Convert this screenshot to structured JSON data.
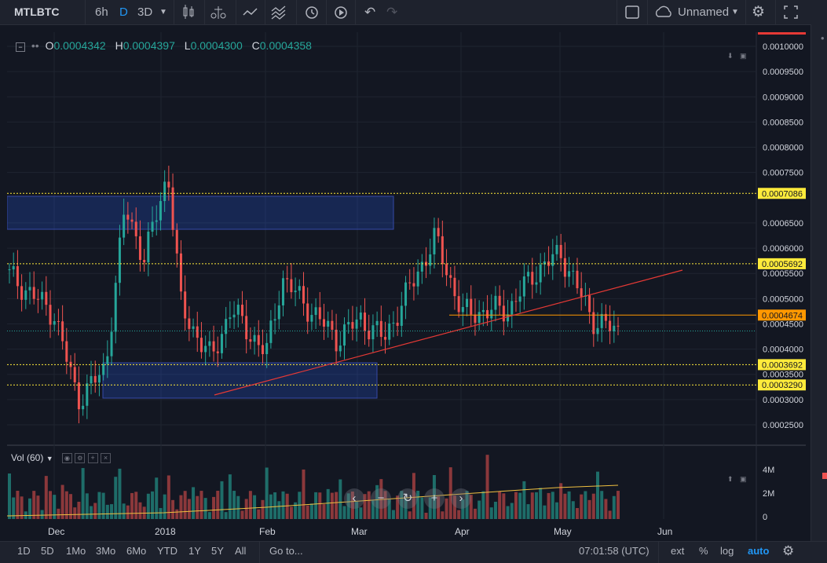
{
  "toolbar": {
    "symbol": "MTLBTC",
    "intervals": [
      "6h",
      "D",
      "3D"
    ],
    "active_interval": "D",
    "layout_name": "Unnamed"
  },
  "legend": {
    "o_label": "O",
    "o_value": "0.0004342",
    "h_label": "H",
    "h_value": "0.0004397",
    "l_label": "L",
    "l_value": "0.0004300",
    "c_label": "C",
    "c_value": "0.0004358"
  },
  "volume": {
    "label": "Vol (60)",
    "axis": [
      "4M",
      "2M",
      "0"
    ]
  },
  "price_axis": {
    "ticks": [
      "0.0010000",
      "0.0009500",
      "0.0009000",
      "0.0008500",
      "0.0008000",
      "0.0007500",
      "0.0006500",
      "0.0006000",
      "0.0005500",
      "0.0005000",
      "0.0004500",
      "0.0004000",
      "0.0003500",
      "0.0003000",
      "0.0002500"
    ],
    "tick_values": [
      0.001,
      0.00095,
      0.0009,
      0.00085,
      0.0008,
      0.00075,
      0.00065,
      0.0006,
      0.00055,
      0.0005,
      0.00045,
      0.0004,
      0.00035,
      0.0003,
      0.00025
    ],
    "level_labels": [
      {
        "text": "0.0007086",
        "value": 0.0007086,
        "color": "#ffeb3b"
      },
      {
        "text": "0.0005692",
        "value": 0.0005692,
        "color": "#ffeb3b"
      },
      {
        "text": "0.0004674",
        "value": 0.0004674,
        "color": "#ff9800"
      },
      {
        "text": "0.0003692",
        "value": 0.0003692,
        "color": "#ffeb3b"
      },
      {
        "text": "0.0003290",
        "value": 0.000329,
        "color": "#ffeb3b"
      }
    ]
  },
  "time_axis": [
    "Dec",
    "2018",
    "Feb",
    "Mar",
    "Apr",
    "May",
    "Jun"
  ],
  "bottom": {
    "ranges": [
      "1D",
      "5D",
      "1Mo",
      "3Mo",
      "6Mo",
      "YTD",
      "1Y",
      "5Y",
      "All"
    ],
    "goto": "Go to...",
    "clock": "07:01:58 (UTC)",
    "ext": "ext",
    "percent": "%",
    "log": "log",
    "auto": "auto"
  },
  "colors": {
    "up": "#26a69a",
    "down": "#ef5350",
    "bg": "#131722",
    "accent": "#2196f3",
    "trendline": "#e53935"
  },
  "chart_data": {
    "type": "candlestick",
    "title": "",
    "ylim": [
      0.00022,
      0.00101
    ],
    "x_labels": [
      "Dec",
      "2018",
      "Feb",
      "Mar",
      "Apr",
      "May",
      "Jun"
    ],
    "close_points": [
      {
        "x": "Nov 20",
        "y": 0.00055
      },
      {
        "x": "Dec 1",
        "y": 0.00047
      },
      {
        "x": "Dec 5",
        "y": 0.0003
      },
      {
        "x": "Dec 15",
        "y": 0.00036
      },
      {
        "x": "Dec 22",
        "y": 0.00068
      },
      {
        "x": "Dec 28",
        "y": 0.00058
      },
      {
        "x": "Jan 5",
        "y": 0.00075
      },
      {
        "x": "Jan 10",
        "y": 0.00048
      },
      {
        "x": "Jan 20",
        "y": 0.00038
      },
      {
        "x": "Jan 25",
        "y": 0.00048
      },
      {
        "x": "Feb 5",
        "y": 0.00039
      },
      {
        "x": "Feb 12",
        "y": 0.00054
      },
      {
        "x": "Feb 25",
        "y": 0.00042
      },
      {
        "x": "Mar 5",
        "y": 0.00046
      },
      {
        "x": "Mar 15",
        "y": 0.00042
      },
      {
        "x": "Mar 23",
        "y": 0.00062
      },
      {
        "x": "Apr 1",
        "y": 0.00047
      },
      {
        "x": "Apr 15",
        "y": 0.00048
      },
      {
        "x": "Apr 25",
        "y": 0.00055
      },
      {
        "x": "May 3",
        "y": 0.00059
      },
      {
        "x": "May 10",
        "y": 0.00046
      },
      {
        "x": "May 17",
        "y": 0.000436
      }
    ],
    "volume_axis": [
      "4M",
      "2M",
      "0"
    ]
  }
}
